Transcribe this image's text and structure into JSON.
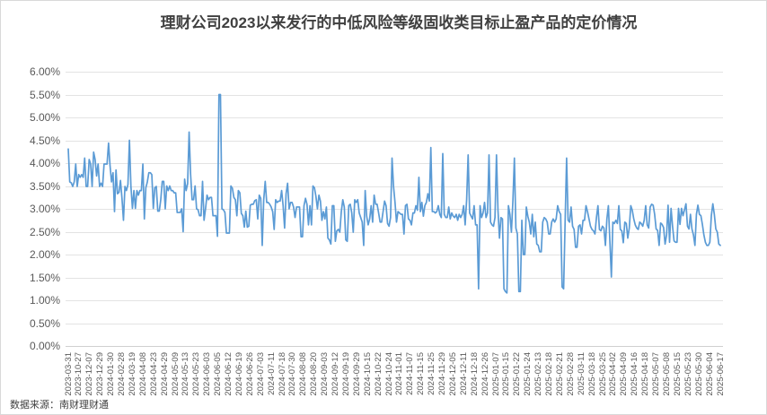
{
  "title": "理财公司2023以来发行的中低风险等级固收类目标止盈产品的定价情况",
  "source": "数据来源：南财理财通",
  "chart_data": {
    "type": "line",
    "title": "理财公司2023以来发行的中低风险等级固收类目标止盈产品的定价情况",
    "xlabel": "",
    "ylabel": "",
    "unit": "%",
    "ylim": [
      0,
      6
    ],
    "y_step": 0.5,
    "grid": true,
    "legend": null,
    "y_ticks": [
      "0.00%",
      "0.50%",
      "1.00%",
      "1.50%",
      "2.00%",
      "2.50%",
      "3.00%",
      "3.50%",
      "4.00%",
      "4.50%",
      "5.00%",
      "5.50%",
      "6.00%"
    ],
    "x_tick_labels": [
      "2023-03-31",
      "2023-10-27",
      "2023-12-07",
      "2023-12-29",
      "2024-01-30",
      "2024-02-28",
      "2024-03-19",
      "2024-04-08",
      "2024-04-23",
      "2024-04-29",
      "2024-05-09",
      "2024-05-13",
      "2024-05-23",
      "2024-06-03",
      "2024-06-05",
      "2024-06-12",
      "2024-06-19",
      "2024-06-26",
      "2024-07-03",
      "2024-07-11",
      "2024-07-18",
      "2024-07-30",
      "2024-08-08",
      "2024-08-20",
      "2024-09-03",
      "2024-09-12",
      "2024-09-19",
      "2024-09-29",
      "2024-10-15",
      "2024-10-22",
      "2024-10-24",
      "2024-11-01",
      "2024-11-07",
      "2024-11-15",
      "2024-11-25",
      "2024-11-29",
      "2024-12-05",
      "2024-12-11",
      "2024-12-18",
      "2024-12-26",
      "2025-01-07",
      "2025-01-15",
      "2025-01-22",
      "2025-01-24",
      "2025-02-13",
      "2025-02-18",
      "2025-02-21",
      "2025-02-28",
      "2025-03-11",
      "2025-03-18",
      "2025-03-25",
      "2025-04-02",
      "2025-04-09",
      "2025-04-16",
      "2025-04-18",
      "2025-05-07",
      "2025-05-08",
      "2025-05-15",
      "2025-05-23",
      "2025-05-30",
      "2025-06-04",
      "2025-06-17"
    ],
    "series": [
      {
        "color": "#5B9BD5",
        "values": [
          4.31,
          3.59,
          3.57,
          3.49,
          3.59,
          3.98,
          3.49,
          3.75,
          3.69,
          3.75,
          3.69,
          4.11,
          3.49,
          3.49,
          4.08,
          3.98,
          3.49,
          4.24,
          4.08,
          3.72,
          3.98,
          3.49,
          3.56,
          3.49,
          3.98,
          3.98,
          3.98,
          4.44,
          3.95,
          3.59,
          3.79,
          2.94,
          3.85,
          3.33,
          3.36,
          3.62,
          3.23,
          2.75,
          3.49,
          3.4,
          3.53,
          4.5,
          3.49,
          3.01,
          3.4,
          3.01,
          3.4,
          3.3,
          3.4,
          3.4,
          3.98,
          2.78,
          3.46,
          3.59,
          3.79,
          3.79,
          3.75,
          3.01,
          3.46,
          3.49,
          2.95,
          2.95,
          3.2,
          3.6,
          3.6,
          3.0,
          3.5,
          3.4,
          3.5,
          3.4,
          3.4,
          3.35,
          3.35,
          2.92,
          2.92,
          2.92,
          3.0,
          2.5,
          3.65,
          3.4,
          3.55,
          4.68,
          3.75,
          3.2,
          3.2,
          3.5,
          3.0,
          2.98,
          2.85,
          2.85,
          3.6,
          2.75,
          3.0,
          3.3,
          3.2,
          3.25,
          3.25,
          2.85,
          2.85,
          2.85,
          2.4,
          5.5,
          5.5,
          3.0,
          2.98,
          2.92,
          2.47,
          2.47,
          2.47,
          3.5,
          3.45,
          3.25,
          3.2,
          2.85,
          3.4,
          3.35,
          2.9,
          2.85,
          2.6,
          2.95,
          2.6,
          2.62,
          3.08,
          3.1,
          3.1,
          3.18,
          3.2,
          2.78,
          3.3,
          3.23,
          2.2,
          3.2,
          3.6,
          3.14,
          3.14,
          3.1,
          3.04,
          2.94,
          2.55,
          3.2,
          3.14,
          3.17,
          3.17,
          3.4,
          3.07,
          2.58,
          3.33,
          3.56,
          3.0,
          3.14,
          3.14,
          3.04,
          2.81,
          3.04,
          3.04,
          3.04,
          2.39,
          2.39,
          3.07,
          3.23,
          3.1,
          2.65,
          3.07,
          2.65,
          3.5,
          3.46,
          3.27,
          3.0,
          3.3,
          3.17,
          2.75,
          2.94,
          2.78,
          3.04,
          2.36,
          2.32,
          2.23,
          3.07,
          3.07,
          2.29,
          2.52,
          2.55,
          2.49,
          2.94,
          3.2,
          3.04,
          2.32,
          2.29,
          3.07,
          3.1,
          2.91,
          2.49,
          3.2,
          3.14,
          3.2,
          2.91,
          2.81,
          2.71,
          2.2,
          3.4,
          2.84,
          2.65,
          2.78,
          3.07,
          2.71,
          3.3,
          3.1,
          3.1,
          2.91,
          2.71,
          2.71,
          2.94,
          3.17,
          3.07,
          2.68,
          2.62,
          2.81,
          4.11,
          3.49,
          3.14,
          2.71,
          2.94,
          2.91,
          2.88,
          2.88,
          2.45,
          3.07,
          3.1,
          2.78,
          2.75,
          2.65,
          2.91,
          2.91,
          3.07,
          2.97,
          3.69,
          2.94,
          3.14,
          2.84,
          3.07,
          3.14,
          3.33,
          3.17,
          4.34,
          2.94,
          2.94,
          2.91,
          2.94,
          3.07,
          2.88,
          2.81,
          4.21,
          2.88,
          2.81,
          2.81,
          3.04,
          2.78,
          2.91,
          2.84,
          2.81,
          2.88,
          2.75,
          2.88,
          2.81,
          2.88,
          3.07,
          2.65,
          3.2,
          4.18,
          2.91,
          2.84,
          2.78,
          3.07,
          2.65,
          2.65,
          1.25,
          3.07,
          2.81,
          2.91,
          3.14,
          2.81,
          2.91,
          4.18,
          2.71,
          2.65,
          2.62,
          2.81,
          4.18,
          2.97,
          2.36,
          2.81,
          2.78,
          1.25,
          1.19,
          1.16,
          3.07,
          2.88,
          2.49,
          3.17,
          4.11,
          2.58,
          2.45,
          1.19,
          1.19,
          2.75,
          2.0,
          2.0,
          3.04,
          2.84,
          2.71,
          2.45,
          2.88,
          2.39,
          2.71,
          2.23,
          2.2,
          2.06,
          2.06,
          2.71,
          2.81,
          2.78,
          2.71,
          2.45,
          2.45,
          2.71,
          2.78,
          2.71,
          2.78,
          3.07,
          2.94,
          2.88,
          1.29,
          1.25,
          2.71,
          4.11,
          2.75,
          2.71,
          3.04,
          2.62,
          2.55,
          2.16,
          2.16,
          2.62,
          2.65,
          2.45,
          2.75,
          2.75,
          3.07,
          2.94,
          2.78,
          2.62,
          2.55,
          2.52,
          2.45,
          2.81,
          3.07,
          2.55,
          2.52,
          2.62,
          2.58,
          2.2,
          2.78,
          3.07,
          2.29,
          1.51,
          2.71,
          2.68,
          2.75,
          2.68,
          3.07,
          2.55,
          2.52,
          2.26,
          2.71,
          2.68,
          2.36,
          2.58,
          3.07,
          2.97,
          2.78,
          2.65,
          2.58,
          2.55,
          2.71,
          2.68,
          2.62,
          2.75,
          3.07,
          2.65,
          2.58,
          3.04,
          3.1,
          3.08,
          2.88,
          2.56,
          2.53,
          2.2,
          2.69,
          2.66,
          2.59,
          2.23,
          2.43,
          3.08,
          2.27,
          3.01,
          2.62,
          2.3,
          2.27,
          2.27,
          3.01,
          2.66,
          3.01,
          2.85,
          2.98,
          3.11,
          2.62,
          2.56,
          2.88,
          2.56,
          2.43,
          2.2,
          2.88,
          3.08,
          2.88,
          2.85,
          2.66,
          2.43,
          2.27,
          2.2,
          2.2,
          2.27,
          2.85,
          3.11,
          2.88,
          2.56,
          2.49,
          2.23,
          2.2
        ]
      }
    ]
  }
}
